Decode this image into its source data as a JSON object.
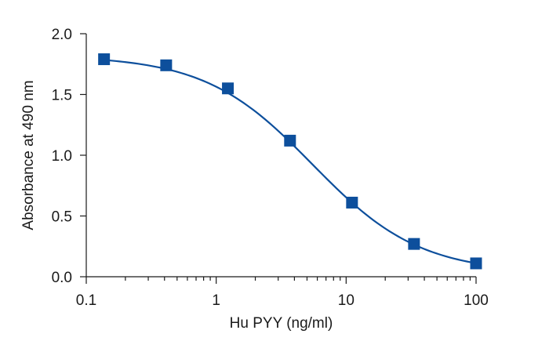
{
  "chart_data": {
    "type": "scatter",
    "xlabel": "Hu PYY (ng/ml)",
    "ylabel": "Absorbance at 490 nm",
    "x_scale": "log",
    "xlim": [
      0.1,
      100
    ],
    "ylim": [
      0.0,
      2.0
    ],
    "x_ticks": [
      0.1,
      1,
      10,
      100
    ],
    "x_tick_labels": [
      "0.1",
      "1",
      "10",
      "100"
    ],
    "y_ticks": [
      0.0,
      0.5,
      1.0,
      1.5,
      2.0
    ],
    "y_tick_labels": [
      "0.0",
      "0.5",
      "1.0",
      "1.5",
      "2.0"
    ],
    "grid": false,
    "series": [
      {
        "x": [
          0.137,
          0.412,
          1.23,
          3.7,
          11.1,
          33.3,
          100
        ],
        "y": [
          1.79,
          1.74,
          1.55,
          1.12,
          0.61,
          0.27,
          0.11
        ],
        "marker": "square",
        "fit_curve": "sigmoidal"
      }
    ],
    "colors": {
      "series": "#0d4f9c",
      "axis": "#1a1a1a"
    }
  }
}
